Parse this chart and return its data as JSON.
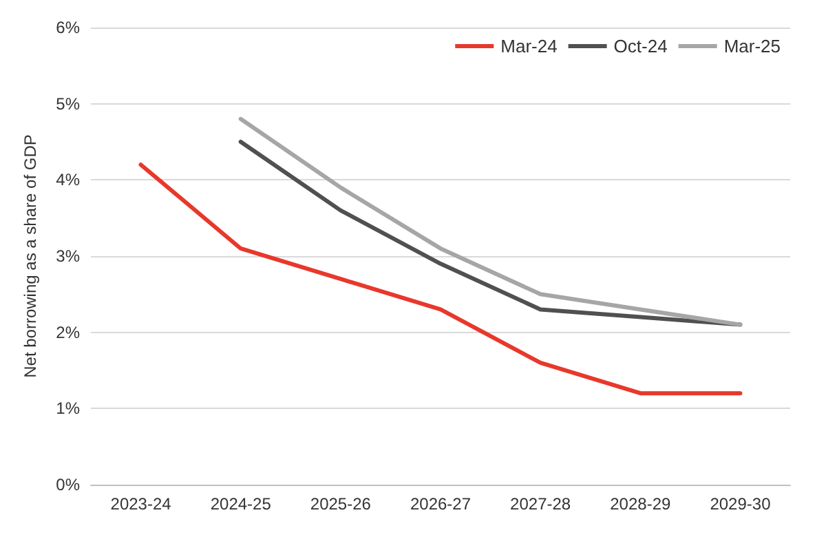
{
  "chart_data": {
    "type": "line",
    "ylabel": "Net borrowing as a share of GDP",
    "categories": [
      "2023-24",
      "2024-25",
      "2025-26",
      "2026-27",
      "2027-28",
      "2028-29",
      "2029-30"
    ],
    "series": [
      {
        "name": "Mar-24",
        "color": "#e8382b",
        "values": [
          4.2,
          3.1,
          2.7,
          2.3,
          1.6,
          1.2,
          1.2
        ]
      },
      {
        "name": "Oct-24",
        "color": "#505050",
        "values": [
          null,
          4.5,
          3.6,
          2.9,
          2.3,
          2.2,
          2.1
        ]
      },
      {
        "name": "Mar-25",
        "color": "#a6a6a6",
        "values": [
          null,
          4.8,
          3.9,
          3.1,
          2.5,
          2.3,
          2.1
        ]
      }
    ],
    "ylim": [
      0,
      6
    ],
    "yticks": [
      {
        "value": 0,
        "label": "0%"
      },
      {
        "value": 1,
        "label": "1%"
      },
      {
        "value": 2,
        "label": "2%"
      },
      {
        "value": 3,
        "label": "3%"
      },
      {
        "value": 4,
        "label": "4%"
      },
      {
        "value": 5,
        "label": "5%"
      },
      {
        "value": 6,
        "label": "6%"
      }
    ],
    "grid": "y",
    "legend": "top right",
    "marker": "none",
    "line_style": "solid"
  }
}
